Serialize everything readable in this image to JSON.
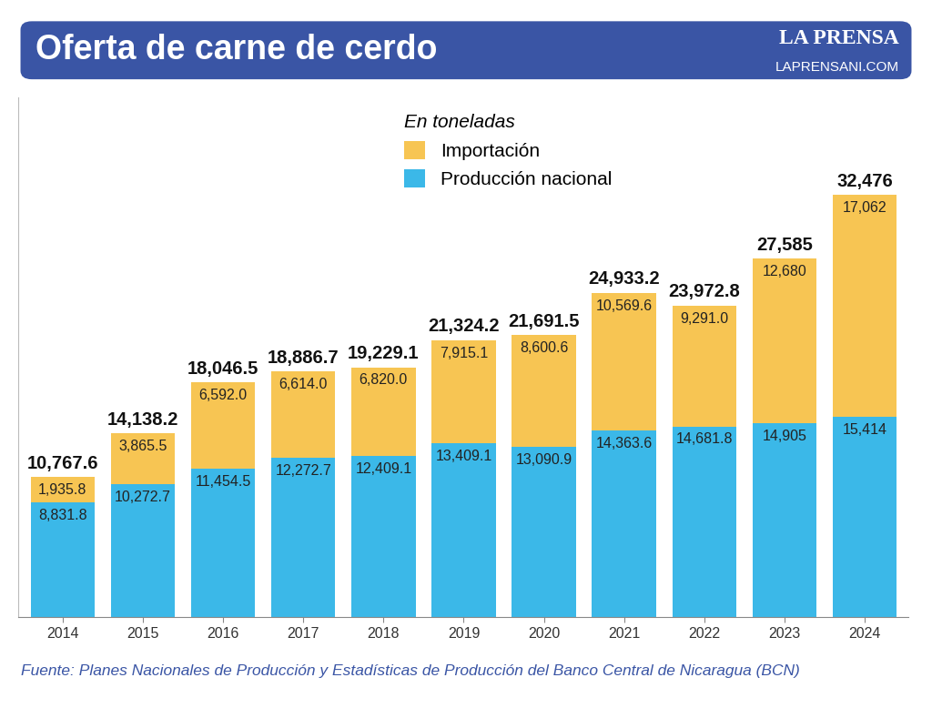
{
  "chart_data": {
    "type": "bar",
    "title": "Oferta de carne de cerdo",
    "brand": "LA PRENSA",
    "brand_url": "LAPRENSANI.COM",
    "legend_title": "En toneladas",
    "source": "Fuente: Planes Nacionales de Producción y Estadísticas de Producción del Banco Central de Nicaragua (BCN)",
    "categories": [
      "2014",
      "2015",
      "2016",
      "2017",
      "2018",
      "2019",
      "2020",
      "2021",
      "2022",
      "2023",
      "2024"
    ],
    "series": [
      {
        "name": "Producción nacional",
        "color": "#3bb8e8",
        "values": [
          8831.8,
          10272.7,
          11454.5,
          12272.7,
          12409.1,
          13409.1,
          13090.9,
          14363.6,
          14681.8,
          14905,
          15414
        ],
        "value_labels": [
          "8,831.8",
          "10,272.7",
          "11,454.5",
          "12,272.7",
          "12,409.1",
          "13,409.1",
          "13,090.9",
          "14,363.6",
          "14,681.8",
          "14,905",
          "15,414"
        ]
      },
      {
        "name": "Importación",
        "color": "#f7c553",
        "values": [
          1935.8,
          3865.5,
          6592.0,
          6614.0,
          6820.0,
          7915.1,
          8600.6,
          10569.6,
          9291.0,
          12680,
          17062
        ],
        "value_labels": [
          "1,935.8",
          "3,865.5",
          "6,592.0",
          "6,614.0",
          "6,820.0",
          "7,915.1",
          "8,600.6",
          "10,569.6",
          "9,291.0",
          "12,680",
          "17,062"
        ]
      }
    ],
    "totals": [
      10767.6,
      14138.2,
      18046.5,
      18886.7,
      19229.1,
      21324.2,
      21691.5,
      24933.2,
      23972.8,
      27585,
      32476
    ],
    "total_labels": [
      "10,767.6",
      "14,138.2",
      "18,046.5",
      "18,886.7",
      "19,229.1",
      "21,324.2",
      "21,691.5",
      "24,933.2",
      "23,972.8",
      "27,585",
      "32,476"
    ],
    "stacked": true,
    "data_labels": true,
    "ylim": [
      0,
      40000
    ],
    "grid": false,
    "legend": "upper center",
    "tick_labels": "x"
  }
}
